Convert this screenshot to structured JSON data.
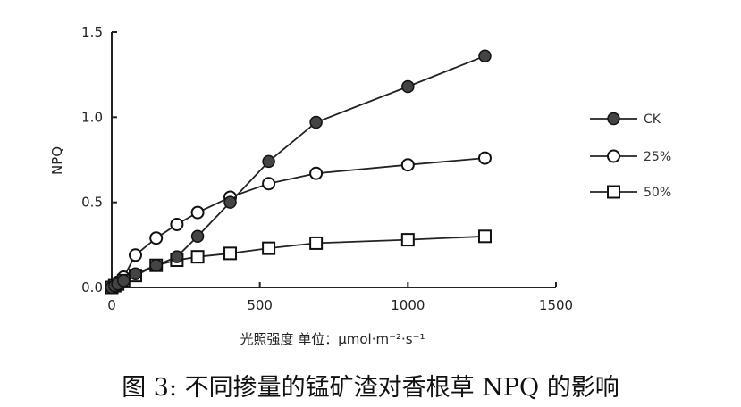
{
  "chart_data": {
    "type": "line",
    "title": "",
    "xlabel": "光照强度 单位：μmol·m⁻²·s⁻¹",
    "ylabel": "NPQ",
    "xlim": [
      0,
      1500
    ],
    "ylim": [
      0,
      1.5
    ],
    "xticks": [
      "0",
      "500",
      "1000",
      "1500"
    ],
    "yticks": [
      "0.0",
      "0.5",
      "1.0",
      "1.5"
    ],
    "grid": false,
    "legend": "right",
    "series": [
      {
        "name": "CK",
        "marker": "filled-circle",
        "x": [
          0,
          10,
          20,
          40,
          80,
          150,
          220,
          290,
          400,
          530,
          690,
          1000,
          1260
        ],
        "y": [
          0.0,
          0.01,
          0.02,
          0.04,
          0.08,
          0.13,
          0.18,
          0.3,
          0.5,
          0.74,
          0.97,
          1.18,
          1.36
        ]
      },
      {
        "name": "25%",
        "marker": "open-circle",
        "x": [
          0,
          10,
          20,
          40,
          80,
          150,
          220,
          290,
          400,
          530,
          690,
          1000,
          1260
        ],
        "y": [
          0.0,
          0.01,
          0.03,
          0.06,
          0.19,
          0.29,
          0.37,
          0.44,
          0.53,
          0.61,
          0.67,
          0.72,
          0.76
        ]
      },
      {
        "name": "50%",
        "marker": "open-square",
        "x": [
          0,
          10,
          20,
          40,
          80,
          150,
          220,
          290,
          400,
          530,
          690,
          1000,
          1260
        ],
        "y": [
          0.0,
          0.01,
          0.02,
          0.04,
          0.07,
          0.13,
          0.16,
          0.18,
          0.2,
          0.23,
          0.26,
          0.28,
          0.3
        ]
      }
    ]
  },
  "caption": "图 3: 不同掺量的锰矿渣对香根草 NPQ 的影响",
  "colors": {
    "ink": "#222222",
    "fill": "#444444"
  }
}
